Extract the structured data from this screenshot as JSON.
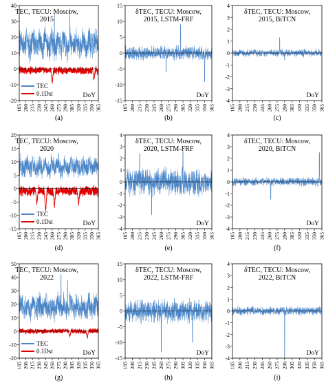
{
  "colors": {
    "tec": "#4a86c8",
    "dst": "#e00000",
    "axis": "#000000"
  },
  "x_axis": {
    "label": "DoY",
    "range": [
      185,
      365
    ],
    "ticks": [
      185,
      200,
      215,
      230,
      245,
      260,
      275,
      290,
      305,
      320,
      335,
      350,
      365
    ]
  },
  "chart_data": [
    {
      "id": "a",
      "type": "line",
      "title": [
        "TEC, TECU: Moscow,",
        "2015"
      ],
      "ylim": [
        -20,
        40
      ],
      "yticks": [
        -20,
        -10,
        0,
        10,
        20,
        30,
        40
      ],
      "series": [
        {
          "name": "TEC",
          "color": "#4a86c8",
          "mean": 16,
          "amp": 7,
          "spikes": [
            {
              "x": 265,
              "y": 35
            },
            {
              "x": 300,
              "y": 38
            }
          ]
        },
        {
          "name": "0.1Dst",
          "color": "#e00000",
          "mean": -1,
          "amp": 2,
          "dips": [
            {
              "x": 260,
              "y": -9
            },
            {
              "x": 355,
              "y": -7
            }
          ]
        }
      ],
      "legend": [
        "TEC",
        "0.1Dst"
      ],
      "panel_label": "(a)"
    },
    {
      "id": "b",
      "type": "line",
      "title": [
        "δTEC, TECU: Moscow,",
        "2015, LSTM-FRF"
      ],
      "ylim": [
        -15,
        15
      ],
      "yticks": [
        -15,
        -10,
        -5,
        0,
        5,
        10,
        15
      ],
      "series": [
        {
          "name": "δTEC",
          "color": "#4a86c8",
          "amp": 1.8,
          "spikes": [
            {
              "x": 270,
              "y": -6
            },
            {
              "x": 300,
              "y": 9
            },
            {
              "x": 350,
              "y": -9
            }
          ]
        }
      ],
      "panel_label": "(b)"
    },
    {
      "id": "c",
      "type": "line",
      "title": [
        "δTEC, TECU: Moscow,",
        "2015, BiTCN"
      ],
      "ylim": [
        -4,
        4
      ],
      "yticks": [
        -4,
        -3,
        -2,
        -1,
        0,
        1,
        2,
        3,
        4
      ],
      "series": [
        {
          "name": "δTEC",
          "color": "#4a86c8",
          "amp": 0.25,
          "spikes": [
            {
              "x": 280,
              "y": 1.3
            },
            {
              "x": 290,
              "y": -0.6
            }
          ]
        }
      ],
      "panel_label": "(c)"
    },
    {
      "id": "d",
      "type": "line",
      "title": [
        "TEC, TECU: Moscow,",
        "2020"
      ],
      "ylim": [
        -15,
        20
      ],
      "yticks": [
        -15,
        -10,
        -5,
        0,
        5,
        10,
        15,
        20
      ],
      "series": [
        {
          "name": "TEC",
          "color": "#4a86c8",
          "mean": 8,
          "amp": 3,
          "spikes": [
            {
              "x": 215,
              "y": 12
            },
            {
              "x": 275,
              "y": 13
            }
          ]
        },
        {
          "name": "0.1Dst",
          "color": "#e00000",
          "mean": -1,
          "amp": 1.5,
          "dips": [
            {
              "x": 225,
              "y": -6
            },
            {
              "x": 245,
              "y": -9
            },
            {
              "x": 265,
              "y": -7
            },
            {
              "x": 320,
              "y": -6
            }
          ]
        }
      ],
      "legend": [
        "TEC",
        "0.1Dst"
      ],
      "panel_label": "(d)"
    },
    {
      "id": "e",
      "type": "line",
      "title": [
        "δTEC, TECU: Moscow,",
        "2020, LSTM-FRF"
      ],
      "ylim": [
        -4,
        4
      ],
      "yticks": [
        -4,
        -3,
        -2,
        -1,
        0,
        1,
        2,
        3,
        4
      ],
      "series": [
        {
          "name": "δTEC",
          "color": "#4a86c8",
          "amp": 0.9,
          "spikes": [
            {
              "x": 215,
              "y": 2.4
            },
            {
              "x": 305,
              "y": 2.6
            },
            {
              "x": 240,
              "y": -2.8
            }
          ]
        }
      ],
      "panel_label": "(e)"
    },
    {
      "id": "f",
      "type": "line",
      "title": [
        "δTEC, TECU: Moscow,",
        "2020, BiTCN"
      ],
      "ylim": [
        -4,
        4
      ],
      "yticks": [
        -4,
        -3,
        -2,
        -1,
        0,
        1,
        2,
        3,
        4
      ],
      "series": [
        {
          "name": "δTEC",
          "color": "#4a86c8",
          "amp": 0.3,
          "spikes": [
            {
              "x": 262,
              "y": -1.5
            },
            {
              "x": 360,
              "y": 2.5
            }
          ]
        }
      ],
      "panel_label": "(f)"
    },
    {
      "id": "g",
      "type": "line",
      "title": [
        "TEC, TECU: Moscow,",
        "2022"
      ],
      "ylim": [
        -20,
        50
      ],
      "yticks": [
        -20,
        -10,
        0,
        10,
        20,
        30,
        40,
        50
      ],
      "series": [
        {
          "name": "TEC",
          "color": "#4a86c8",
          "mean": 18,
          "amp": 7,
          "spikes": [
            {
              "x": 280,
              "y": 42
            },
            {
              "x": 295,
              "y": 38
            }
          ]
        },
        {
          "name": "0.1Dst",
          "color": "#e00000",
          "mean": 0,
          "amp": 1.5,
          "dips": [
            {
              "x": 300,
              "y": -4
            },
            {
              "x": 340,
              "y": -5
            }
          ]
        }
      ],
      "legend": [
        "TEC",
        "0.1Dst"
      ],
      "panel_label": "(g)"
    },
    {
      "id": "h",
      "type": "line",
      "title": [
        "δTEC, TECU: Moscow,",
        "2022, LSTM-FRF"
      ],
      "ylim": [
        -15,
        15
      ],
      "yticks": [
        -15,
        -10,
        -5,
        0,
        5,
        10,
        15
      ],
      "series": [
        {
          "name": "δTEC",
          "color": "#4a86c8",
          "amp": 3,
          "spikes": [
            {
              "x": 260,
              "y": -13
            },
            {
              "x": 325,
              "y": -10
            },
            {
              "x": 365,
              "y": -15
            }
          ]
        }
      ],
      "panel_label": "(h)"
    },
    {
      "id": "i",
      "type": "line",
      "title": [
        "δTEC, TECU: Moscow,",
        "2022, BiTCN"
      ],
      "ylim": [
        -4,
        4
      ],
      "yticks": [
        -4,
        -3,
        -2,
        -1,
        0,
        1,
        2,
        3,
        4
      ],
      "series": [
        {
          "name": "δTEC",
          "color": "#4a86c8",
          "amp": 0.3,
          "spikes": [
            {
              "x": 290,
              "y": -4
            },
            {
              "x": 365,
              "y": 4
            }
          ]
        }
      ],
      "panel_label": "(i)"
    }
  ]
}
